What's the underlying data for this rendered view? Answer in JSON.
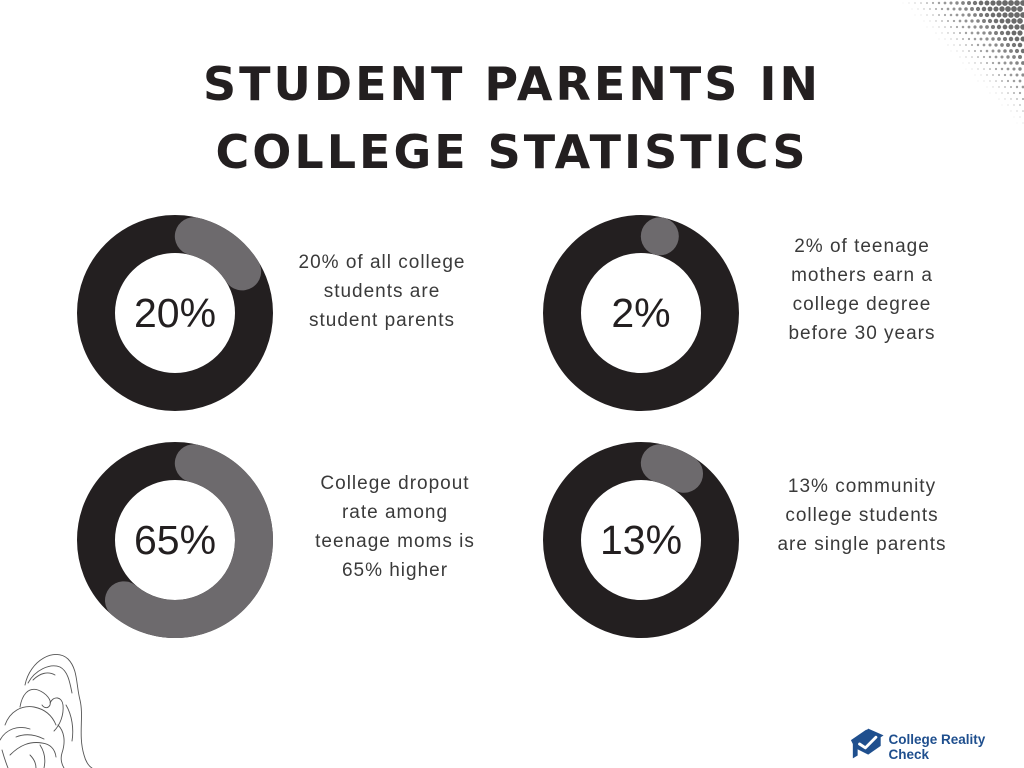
{
  "title": {
    "line1": "STUDENT PARENTS IN",
    "line2": "COLLEGE STATISTICS"
  },
  "colors": {
    "ring_dark": "#231f20",
    "ring_highlight": "#6d6a6d",
    "text": "#3a3a3a",
    "brand": "#1f4f8e"
  },
  "stats": [
    {
      "value": 20,
      "label": "20%",
      "description": [
        "20% of all college",
        "students are",
        "student parents"
      ]
    },
    {
      "value": 2,
      "label": "2%",
      "description": [
        "2% of teenage",
        "mothers earn a",
        "college degree",
        "before 30 years"
      ]
    },
    {
      "value": 65,
      "label": "65%",
      "description": [
        "College dropout",
        "rate among",
        "teenage moms is",
        "65% higher"
      ]
    },
    {
      "value": 13,
      "label": "13%",
      "description": [
        "13% community",
        "college students",
        "are single parents"
      ]
    }
  ],
  "chart_data": {
    "type": "pie",
    "title": "STUDENT PARENTS IN COLLEGE STATISTICS",
    "style": "donut",
    "categories": [
      "20% of all college students are student parents",
      "2% of teenage mothers earn a college degree before 30 years",
      "College dropout rate among teenage moms is 65% higher",
      "13% community college students are single parents"
    ],
    "values": [
      20,
      2,
      65,
      13
    ],
    "unit": "%",
    "layout": "2x2 grid of single-value donut gauges"
  },
  "logo": {
    "icon": "graduation-cap-check-icon",
    "text": "College Reality Check"
  },
  "decorations": {
    "top_right": "halftone-dots",
    "bottom_left": "mother-and-child-line-illustration"
  }
}
